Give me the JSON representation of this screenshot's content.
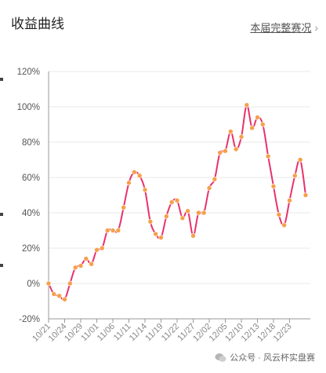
{
  "header": {
    "title": "收益曲线",
    "link_label": "本届完整赛况",
    "chevron": "›"
  },
  "footer": {
    "text": "公众号 · 风云杯实盘赛",
    "icon": "wechat-icon"
  },
  "colors": {
    "line": "#e8326a",
    "marker": "#f5a04a",
    "grid": "#e9e9e9",
    "axis": "#999999"
  },
  "chart_data": {
    "type": "line",
    "title": "收益曲线",
    "xlabel": "",
    "ylabel": "",
    "ylim": [
      -20,
      120
    ],
    "yticks": [
      -20,
      0,
      20,
      40,
      60,
      80,
      100,
      120
    ],
    "ytick_labels": [
      "-20%",
      "0%",
      "20%",
      "40%",
      "60%",
      "80%",
      "100%",
      "120%"
    ],
    "xtick_labels": [
      "10/21",
      "10/24",
      "10/29",
      "11/01",
      "11/06",
      "11/11",
      "11/14",
      "11/19",
      "11/22",
      "11/27",
      "12/02",
      "12/05",
      "12/10",
      "12/13",
      "12/18",
      "12/23"
    ],
    "series": [
      {
        "values": [
          0,
          -6,
          -7,
          -9,
          0,
          9,
          10,
          14,
          11,
          19,
          20,
          30,
          30,
          30,
          43,
          57,
          63,
          61,
          53,
          35,
          28,
          26,
          38,
          46,
          47,
          37,
          41,
          27,
          40,
          40,
          54,
          59,
          74,
          75,
          86,
          76,
          83,
          101,
          88,
          94,
          90,
          72,
          55,
          39,
          33,
          47,
          61,
          70,
          50
        ]
      }
    ]
  }
}
